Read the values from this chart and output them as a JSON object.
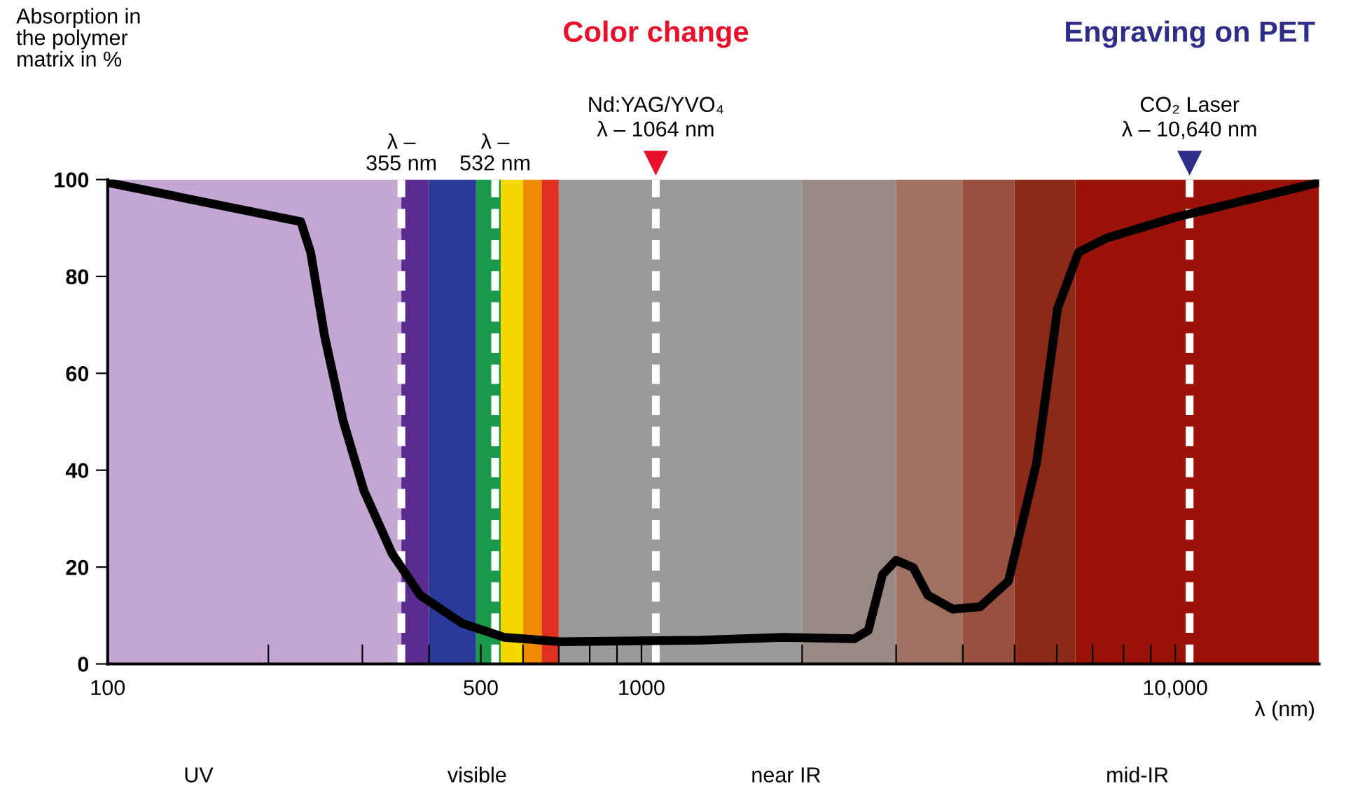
{
  "chart_data": {
    "type": "line",
    "ylabel": "Absorption in\nthe polymer\nmatrix in %",
    "xlabel": "λ (nm)",
    "log": "x",
    "xlim": [
      100,
      18600
    ],
    "ylim": [
      0,
      100
    ],
    "xticks": [
      100,
      {
        "value": 200,
        "label": null
      },
      {
        "value": 300,
        "label": null
      },
      {
        "value": 400,
        "label": null
      },
      500,
      {
        "value": 600,
        "label": null
      },
      {
        "value": 700,
        "label": null
      },
      {
        "value": 800,
        "label": null
      },
      {
        "value": 900,
        "label": null
      },
      1000,
      {
        "value": 2000,
        "label": null
      },
      {
        "value": 3000,
        "label": null
      },
      {
        "value": 4000,
        "label": null
      },
      {
        "value": 5000,
        "label": null
      },
      {
        "value": 6000,
        "label": null
      },
      {
        "value": 7000,
        "label": null
      },
      {
        "value": 8000,
        "label": null
      },
      {
        "value": 9000,
        "label": null
      },
      {
        "value": 10000,
        "label": "10,000"
      }
    ],
    "yticks": [
      0,
      20,
      40,
      60,
      80,
      100
    ],
    "grid": false,
    "legend": false,
    "marker": "none",
    "line_style": "solid",
    "series": [
      {
        "color": "#000000",
        "x": [
          100,
          230,
          240,
          255,
          276,
          302,
          341,
          385,
          461,
          553,
          705,
          1290,
          1850,
          2505,
          2660,
          2830,
          3000,
          3230,
          3440,
          3830,
          4310,
          4870,
          5500,
          6020,
          6590,
          7430,
          10000,
          18600
        ],
        "values": [
          99.4,
          91.3,
          85,
          67.6,
          50.3,
          35.8,
          22.8,
          14.2,
          8.4,
          5.5,
          4.6,
          4.9,
          5.5,
          5.2,
          6.9,
          18.5,
          21.4,
          19.9,
          14.2,
          11.3,
          11.8,
          17.1,
          41.6,
          73.4,
          85,
          87.9,
          92.2,
          99.4
        ]
      }
    ],
    "bands": [
      {
        "axis": "x",
        "from": 100,
        "to": 355,
        "color": "#c4a6d3"
      },
      {
        "axis": "x",
        "from": 355,
        "to": 400,
        "color": "#5b2c8f"
      },
      {
        "axis": "x",
        "from": 400,
        "to": 490,
        "color": "#2a3a9a"
      },
      {
        "axis": "x",
        "from": 490,
        "to": 545,
        "color": "#1a9a4a"
      },
      {
        "axis": "x",
        "from": 545,
        "to": 600,
        "color": "#f5d800"
      },
      {
        "axis": "x",
        "from": 600,
        "to": 650,
        "color": "#f08a00"
      },
      {
        "axis": "x",
        "from": 650,
        "to": 700,
        "color": "#e03020"
      },
      {
        "axis": "x",
        "from": 700,
        "to": 2000,
        "color": "#9a9a9a"
      },
      {
        "axis": "x",
        "from": 2000,
        "to": 3000,
        "color": "#9a8a85"
      },
      {
        "axis": "x",
        "from": 3000,
        "to": 4000,
        "color": "#a07060"
      },
      {
        "axis": "x",
        "from": 4000,
        "to": 5000,
        "color": "#9a5040"
      },
      {
        "axis": "x",
        "from": 5000,
        "to": 6500,
        "color": "#8c2a1a"
      },
      {
        "axis": "x",
        "from": 6500,
        "to": 18600,
        "color": "#9a1208"
      }
    ],
    "ref_lines": [
      {
        "axis": "x",
        "value": 355,
        "label": "λ –\n355 nm",
        "color": "#ffffff",
        "line_style": "dashed"
      },
      {
        "axis": "x",
        "value": 532,
        "label": "λ –\n532 nm",
        "color": "#ffffff",
        "line_style": "dashed"
      },
      {
        "axis": "x",
        "value": 1064,
        "label": "Nd:YAG/YVO₄\nλ – 1064 nm",
        "color": "#ffffff",
        "line_style": "dashed"
      },
      {
        "axis": "x",
        "value": 10640,
        "label": "CO₂ Laser\nλ – 10,640 nm",
        "color": "#ffffff",
        "line_style": "dashed"
      }
    ],
    "annotations": [
      "Color change",
      "Engraving on PET",
      "UV",
      "visible",
      "near IR",
      "mid-IR"
    ]
  }
}
